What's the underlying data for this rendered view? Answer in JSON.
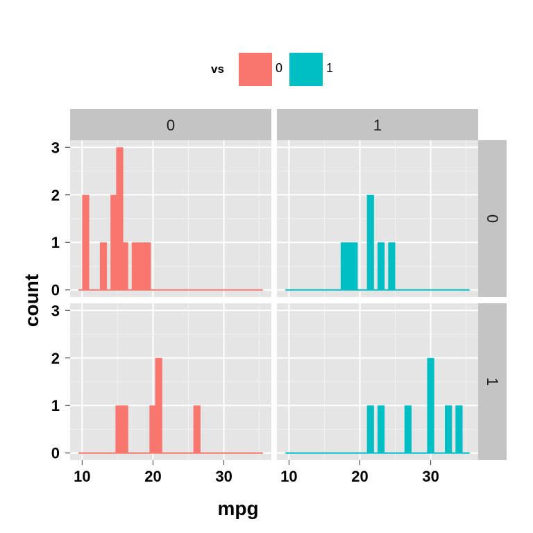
{
  "chart_data": {
    "type": "bar",
    "xlabel": "mpg",
    "ylabel": "count",
    "xlim": [
      8.3,
      36.7
    ],
    "ylim": [
      -0.15,
      3.15
    ],
    "x_ticks": [
      10,
      20,
      30
    ],
    "y_ticks": [
      0,
      1,
      2,
      3
    ],
    "bin_width": 1.0,
    "row_facet_labels": [
      "0",
      "1"
    ],
    "col_facet_labels": [
      "0",
      "1"
    ],
    "legend": {
      "title": "vs",
      "position": "top",
      "entries": [
        {
          "label": "0",
          "color": "#F8766D"
        },
        {
          "label": "1",
          "color": "#00BFC4"
        }
      ]
    },
    "panels": [
      {
        "row": "0",
        "col": "0",
        "color": "#F8766D",
        "bins": [
          {
            "x": 10.5,
            "count": 2
          },
          {
            "x": 13.0,
            "count": 1
          },
          {
            "x": 14.5,
            "count": 2
          },
          {
            "x": 15.3,
            "count": 3
          },
          {
            "x": 16.0,
            "count": 1
          },
          {
            "x": 17.5,
            "count": 1
          },
          {
            "x": 18.5,
            "count": 1
          },
          {
            "x": 19.2,
            "count": 1
          }
        ],
        "line_range": [
          9.5,
          35.5
        ]
      },
      {
        "row": "0",
        "col": "1",
        "color": "#00BFC4",
        "bins": [
          {
            "x": 17.8,
            "count": 1
          },
          {
            "x": 18.5,
            "count": 1
          },
          {
            "x": 19.2,
            "count": 1
          },
          {
            "x": 21.5,
            "count": 2
          },
          {
            "x": 23.0,
            "count": 1
          },
          {
            "x": 24.5,
            "count": 1
          }
        ],
        "line_range": [
          9.5,
          35.5
        ]
      },
      {
        "row": "1",
        "col": "0",
        "color": "#F8766D",
        "bins": [
          {
            "x": 15.2,
            "count": 1
          },
          {
            "x": 16.0,
            "count": 1
          },
          {
            "x": 20.0,
            "count": 1
          },
          {
            "x": 20.8,
            "count": 2
          },
          {
            "x": 26.2,
            "count": 1
          }
        ],
        "line_range": [
          9.5,
          35.5
        ]
      },
      {
        "row": "1",
        "col": "1",
        "color": "#00BFC4",
        "bins": [
          {
            "x": 21.5,
            "count": 1
          },
          {
            "x": 23.0,
            "count": 1
          },
          {
            "x": 26.8,
            "count": 1
          },
          {
            "x": 30.0,
            "count": 2
          },
          {
            "x": 32.5,
            "count": 1
          },
          {
            "x": 34.0,
            "count": 1
          }
        ],
        "line_range": [
          9.5,
          35.5
        ]
      }
    ]
  }
}
